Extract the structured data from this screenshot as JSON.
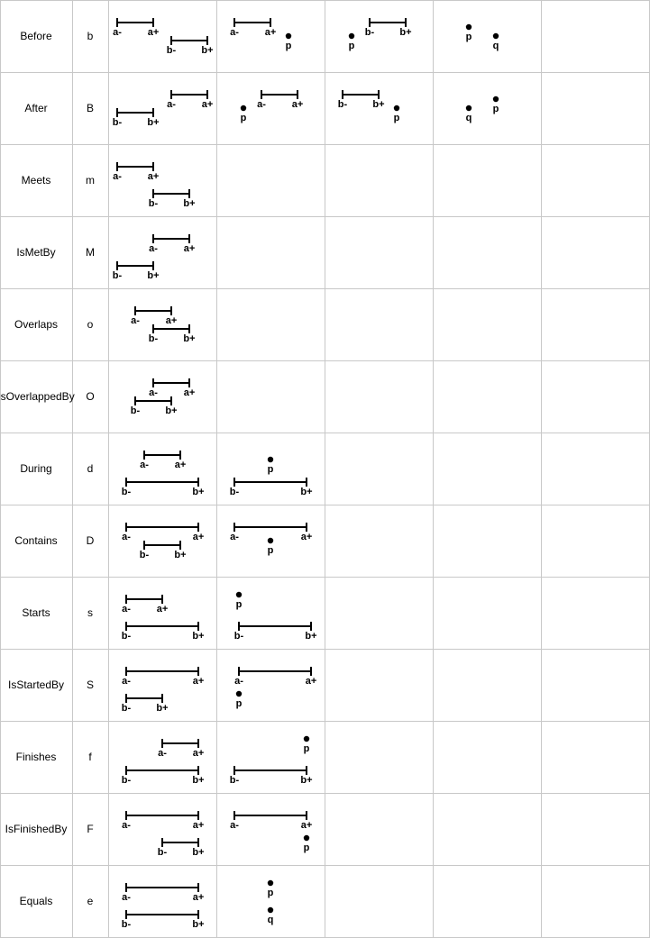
{
  "relations": [
    {
      "name": "Before",
      "symbol": "b"
    },
    {
      "name": "After",
      "symbol": "B"
    },
    {
      "name": "Meets",
      "symbol": "m"
    },
    {
      "name": "IsMetBy",
      "symbol": "M"
    },
    {
      "name": "Overlaps",
      "symbol": "o"
    },
    {
      "name": "IsOverlappedBy",
      "symbol": "O"
    },
    {
      "name": "During",
      "symbol": "d"
    },
    {
      "name": "Contains",
      "symbol": "D"
    },
    {
      "name": "Starts",
      "symbol": "s"
    },
    {
      "name": "IsStartedBy",
      "symbol": "S"
    },
    {
      "name": "Finishes",
      "symbol": "f"
    },
    {
      "name": "IsFinishedBy",
      "symbol": "F"
    },
    {
      "name": "Equals",
      "symbol": "e"
    }
  ],
  "endpoint_labels": {
    "a_start": "a-",
    "a_end": "a+",
    "b_start": "b-",
    "b_end": "b+",
    "point_p": "p",
    "point_q": "q"
  }
}
